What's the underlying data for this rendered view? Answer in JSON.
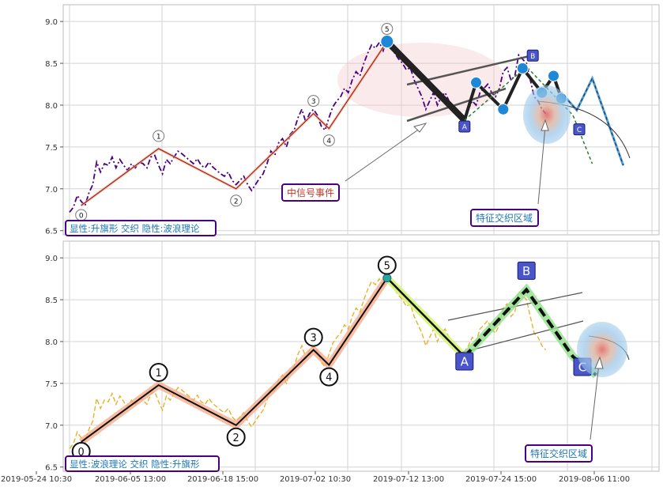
{
  "chart_data": [
    {
      "type": "line",
      "panel": "top",
      "ylim": [
        6.45,
        9.2
      ],
      "y_ticks": [
        "6.5",
        "7.0",
        "7.5",
        "8.0",
        "8.5",
        "9.0"
      ],
      "grid": true,
      "price_series_color": "#4b0082",
      "price": [
        6.72,
        6.78,
        6.92,
        6.85,
        6.8,
        6.95,
        7.05,
        7.32,
        7.2,
        7.3,
        7.28,
        7.38,
        7.25,
        7.35,
        7.28,
        7.22,
        7.3,
        7.25,
        7.32,
        7.3,
        7.25,
        7.38,
        7.4,
        7.28,
        7.18,
        7.35,
        7.3,
        7.38,
        7.45,
        7.42,
        7.38,
        7.34,
        7.3,
        7.36,
        7.28,
        7.25,
        7.32,
        7.26,
        7.22,
        7.18,
        7.15,
        7.2,
        7.1,
        7.05,
        7.1,
        7.15,
        7.05,
        6.98,
        7.05,
        7.12,
        7.18,
        7.3,
        7.45,
        7.4,
        7.55,
        7.6,
        7.5,
        7.65,
        7.7,
        7.85,
        7.95,
        7.8,
        7.9,
        7.95,
        7.88,
        7.75,
        7.7,
        7.85,
        7.98,
        8.05,
        8.1,
        8.2,
        8.15,
        8.3,
        8.4,
        8.35,
        8.5,
        8.62,
        8.72,
        8.68,
        8.75,
        8.65,
        8.8,
        8.7,
        8.62,
        8.55,
        8.5,
        8.42,
        8.45,
        8.3,
        8.2,
        8.1,
        7.95,
        8.05,
        8.15,
        8.0,
        8.1,
        8.15,
        8.05,
        7.95,
        7.9,
        7.85,
        7.88,
        7.95,
        8.05,
        8.0,
        8.15,
        8.2,
        8.25,
        8.15,
        8.1,
        8.2,
        8.4,
        8.45,
        8.3,
        8.35,
        8.6,
        8.55,
        8.5,
        8.3,
        8.1,
        8.05,
        7.95,
        7.9
      ],
      "wave_1_to_5": {
        "labels": [
          "0",
          "1",
          "2",
          "3",
          "4",
          "5"
        ],
        "points": [
          [
            3,
            6.8
          ],
          [
            23,
            7.48
          ],
          [
            43,
            7.0
          ],
          [
            63,
            7.9
          ],
          [
            67,
            7.72
          ],
          [
            82,
            8.76
          ]
        ]
      },
      "correction": {
        "labels": [
          "A",
          "B",
          "C"
        ],
        "points": [
          [
            102,
            7.82
          ],
          [
            118,
            8.46
          ],
          [
            130,
            7.88
          ],
          [
            135,
            7.3
          ]
        ]
      },
      "zigzag": [
        [
          82,
          8.76
        ],
        [
          102,
          7.82
        ],
        [
          105,
          8.27
        ],
        [
          112,
          7.95
        ],
        [
          117,
          8.44
        ],
        [
          122,
          8.15
        ],
        [
          125,
          8.35
        ],
        [
          127,
          8.08
        ]
      ],
      "projection": [
        [
          127,
          8.15
        ],
        [
          131,
          7.94
        ],
        [
          135,
          8.32
        ],
        [
          143,
          7.28
        ]
      ],
      "annotations": [
        {
          "id": "event",
          "text": "中信号事件"
        },
        {
          "id": "zone",
          "text": "特征交织区域"
        },
        {
          "id": "legend",
          "text": "显性:升旗形 交织 隐性:波浪理论"
        }
      ]
    },
    {
      "type": "line",
      "panel": "bottom",
      "ylim": [
        6.45,
        9.2
      ],
      "y_ticks": [
        "6.5",
        "7.0",
        "7.5",
        "8.0",
        "8.5",
        "9.0"
      ],
      "x_ticks": [
        "2019-05-24 10:30",
        "2019-06-05 13:00",
        "2019-06-18 15:00",
        "2019-07-02 10:30",
        "2019-07-12 13:00",
        "2019-07-24 15:00",
        "2019-08-06 11:00"
      ],
      "grid": true,
      "price_series_color": "#e6a817",
      "wave_1_to_5": {
        "labels": [
          "0",
          "1",
          "2",
          "3",
          "4",
          "5"
        ],
        "points": [
          [
            3,
            6.8
          ],
          [
            23,
            7.48
          ],
          [
            43,
            7.0
          ],
          [
            63,
            7.9
          ],
          [
            67,
            7.72
          ],
          [
            82,
            8.76
          ]
        ]
      },
      "correction": {
        "labels": [
          "A",
          "B",
          "C"
        ],
        "points": [
          [
            102,
            7.82
          ],
          [
            118,
            8.62
          ],
          [
            130,
            7.82
          ],
          [
            136,
            7.6
          ]
        ]
      },
      "annotations": [
        {
          "id": "zone",
          "text": "特征交织区域"
        },
        {
          "id": "legend",
          "text": "显性:波浪理论 交织 隐性:升旗形"
        }
      ]
    }
  ]
}
